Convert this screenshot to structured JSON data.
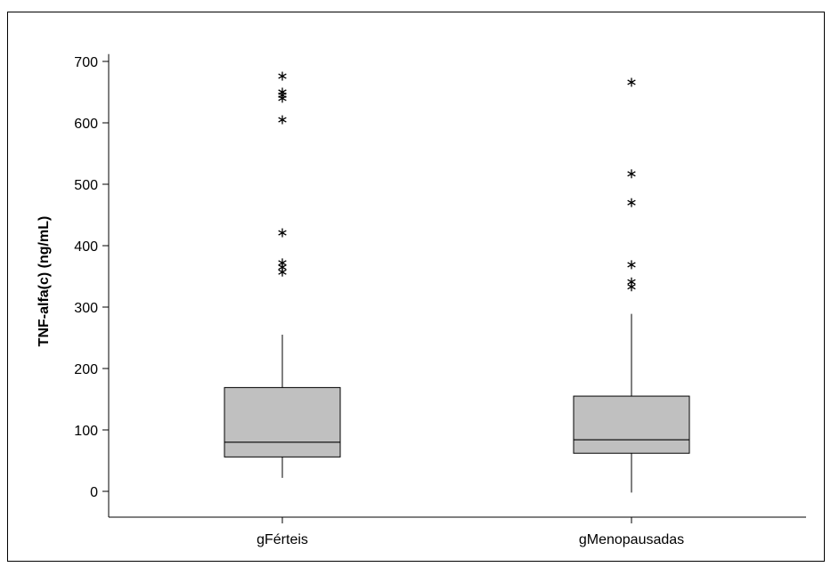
{
  "chart_data": {
    "type": "boxplot",
    "title": "",
    "xlabel": "",
    "ylabel": "TNF-alfa(c) (ng/mL)",
    "ylim": [
      -40,
      715
    ],
    "yticks": [
      0,
      100,
      200,
      300,
      400,
      500,
      600,
      700
    ],
    "ytick_labels": [
      "0",
      "100",
      "200",
      "300",
      "400",
      "500",
      "600",
      "700"
    ],
    "grid": false,
    "categories": [
      "gFérteis",
      "gMenopausadas"
    ],
    "series": [
      {
        "category": "gFérteis",
        "whisker_low": 22,
        "q1": 56,
        "median": 80,
        "q3": 169,
        "whisker_high": 255,
        "outliers": [
          357,
          365,
          372,
          421,
          605,
          640,
          645,
          650,
          676
        ]
      },
      {
        "category": "gMenopausadas",
        "whisker_low": -2,
        "q1": 62,
        "median": 84,
        "q3": 155,
        "whisker_high": 289,
        "outliers": [
          333,
          341,
          369,
          470,
          517,
          666
        ]
      }
    ],
    "colors": {
      "box_fill": "#c0c0c0",
      "stroke": "#000000",
      "frame": "#000000"
    }
  }
}
